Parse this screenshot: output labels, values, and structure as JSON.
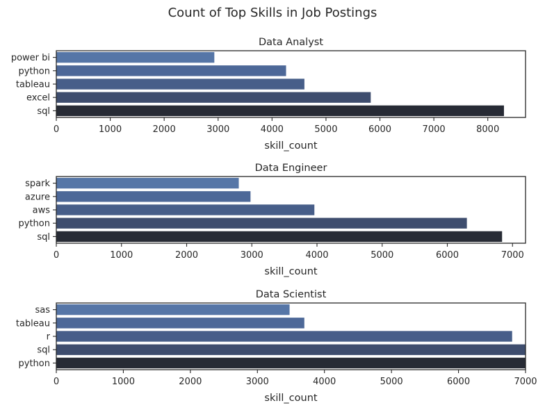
{
  "title": "Count of Top Skills in Job Postings",
  "colors": {
    "bars_light_to_dark": [
      "#5676a7",
      "#4d6898",
      "#475e89",
      "#3e4d6e",
      "#272b35"
    ]
  },
  "chart_data": [
    {
      "type": "bar",
      "orientation": "horizontal",
      "title": "Data Analyst",
      "xlabel": "skill_count",
      "ylabel": "",
      "categories": [
        "power bi",
        "python",
        "tableau",
        "excel",
        "sql"
      ],
      "values": [
        2930,
        4260,
        4600,
        5830,
        8300
      ],
      "xlim": [
        0,
        8700
      ],
      "xticks": [
        "0",
        "1000",
        "2000",
        "3000",
        "4000",
        "5000",
        "6000",
        "7000",
        "8000"
      ],
      "grid": false,
      "legend": "none"
    },
    {
      "type": "bar",
      "orientation": "horizontal",
      "title": "Data Engineer",
      "xlabel": "skill_count",
      "ylabel": "",
      "categories": [
        "spark",
        "azure",
        "aws",
        "python",
        "sql"
      ],
      "values": [
        2800,
        2980,
        3960,
        6300,
        6840
      ],
      "xlim": [
        0,
        7200
      ],
      "xticks": [
        "0",
        "1000",
        "2000",
        "3000",
        "4000",
        "5000",
        "6000",
        "7000"
      ],
      "grid": false,
      "legend": "none"
    },
    {
      "type": "bar",
      "orientation": "horizontal",
      "title": "Data Scientist",
      "xlabel": "skill_count",
      "ylabel": "",
      "categories": [
        "sas",
        "tableau",
        "r",
        "sql",
        "python"
      ],
      "values": [
        3480,
        3700,
        6800,
        7000,
        7000
      ],
      "xlim": [
        0,
        7000
      ],
      "xticks": [
        "0",
        "1000",
        "2000",
        "3000",
        "4000",
        "5000",
        "6000",
        "7000"
      ],
      "grid": false,
      "legend": "none"
    }
  ]
}
